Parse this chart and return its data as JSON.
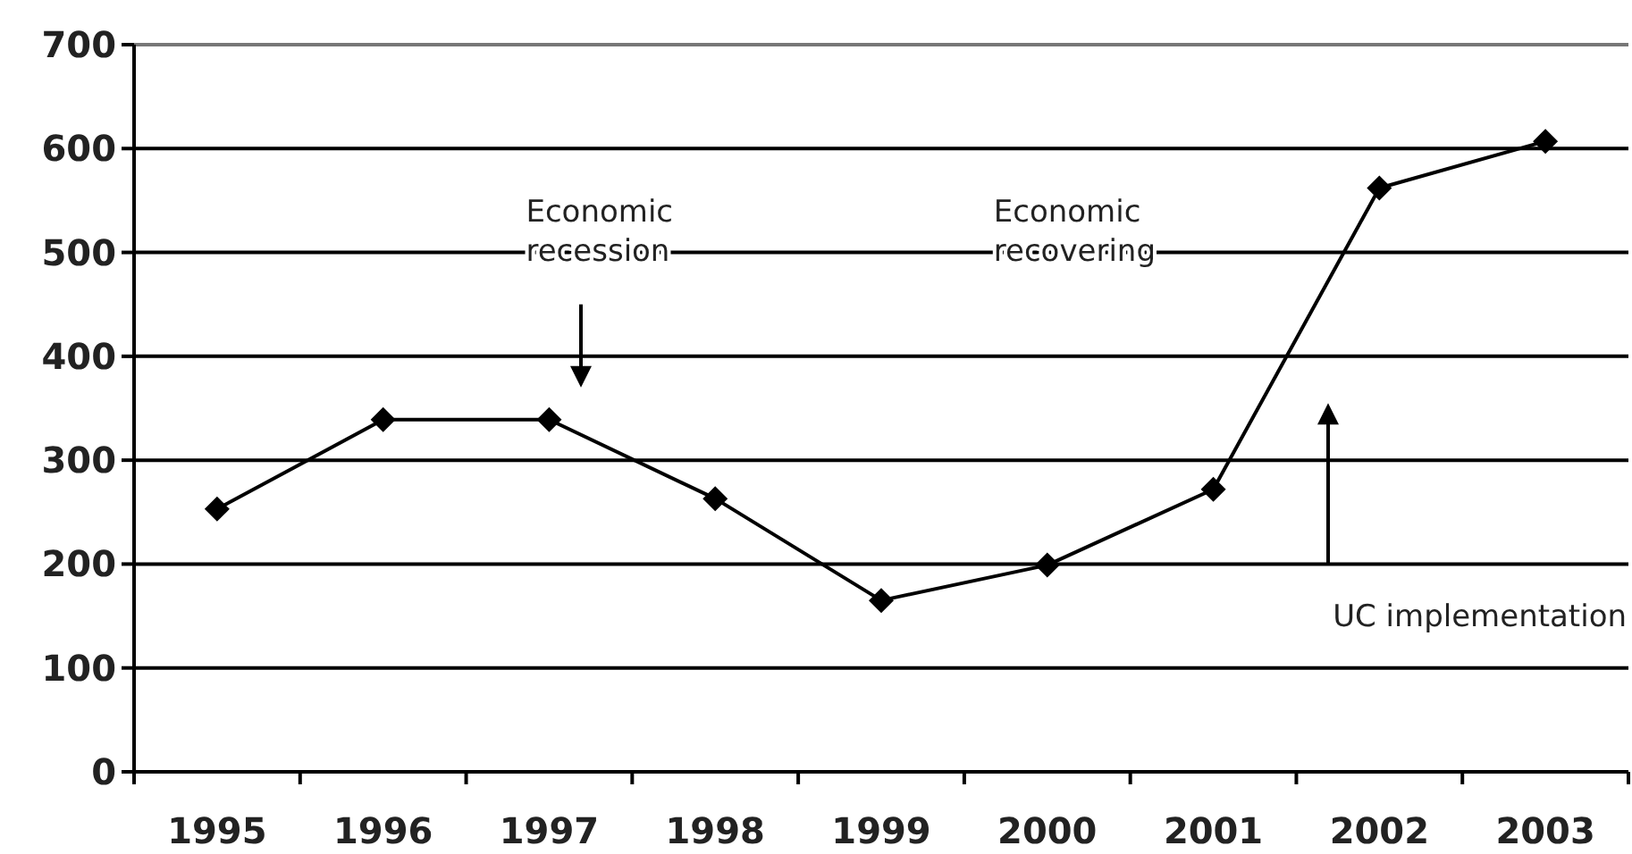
{
  "chart_data": {
    "type": "line",
    "categories": [
      "1995",
      "1996",
      "1997",
      "1998",
      "1999",
      "2000",
      "2001",
      "2002",
      "2003"
    ],
    "values": [
      253,
      339,
      339,
      263,
      165,
      199,
      272,
      562,
      607
    ],
    "color": "#000000",
    "ylim": [
      0,
      700
    ],
    "yticks": [
      0,
      100,
      200,
      300,
      400,
      500,
      600,
      700
    ],
    "grid": "y",
    "marker": "diamond",
    "line_style": "solid",
    "annotations": [
      "Economic recession",
      "Economic recovering",
      "UC implementation"
    ]
  }
}
